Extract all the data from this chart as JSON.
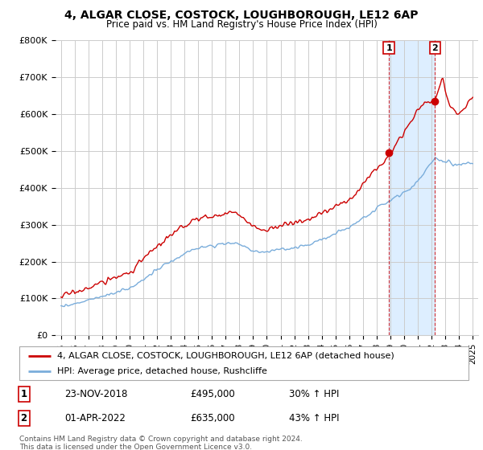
{
  "title": "4, ALGAR CLOSE, COSTOCK, LOUGHBOROUGH, LE12 6AP",
  "subtitle": "Price paid vs. HM Land Registry's House Price Index (HPI)",
  "legend_label_red": "4, ALGAR CLOSE, COSTOCK, LOUGHBOROUGH, LE12 6AP (detached house)",
  "legend_label_blue": "HPI: Average price, detached house, Rushcliffe",
  "point1_label": "23-NOV-2018",
  "point1_value": "£495,000",
  "point1_hpi": "30% ↑ HPI",
  "point2_label": "01-APR-2022",
  "point2_value": "£635,000",
  "point2_hpi": "43% ↑ HPI",
  "footer": "Contains HM Land Registry data © Crown copyright and database right 2024.\nThis data is licensed under the Open Government Licence v3.0.",
  "red_color": "#cc0000",
  "blue_color": "#7aaddb",
  "background_color": "#ffffff",
  "grid_color": "#cccccc",
  "shaded_region_color": "#ddeeff",
  "point1_x": 2018.896,
  "point1_y": 495000,
  "point2_x": 2022.247,
  "point2_y": 635000,
  "ylim": [
    0,
    800000
  ],
  "xlim_start": 1994.6,
  "xlim_end": 2025.4,
  "ytick_values": [
    0,
    100000,
    200000,
    300000,
    400000,
    500000,
    600000,
    700000,
    800000
  ],
  "ytick_labels": [
    "£0",
    "£100K",
    "£200K",
    "£300K",
    "£400K",
    "£500K",
    "£600K",
    "£700K",
    "£800K"
  ],
  "xtick_values": [
    1995,
    1996,
    1997,
    1998,
    1999,
    2000,
    2001,
    2002,
    2003,
    2004,
    2005,
    2006,
    2007,
    2008,
    2009,
    2010,
    2011,
    2012,
    2013,
    2014,
    2015,
    2016,
    2017,
    2018,
    2019,
    2020,
    2021,
    2022,
    2023,
    2024,
    2025
  ]
}
